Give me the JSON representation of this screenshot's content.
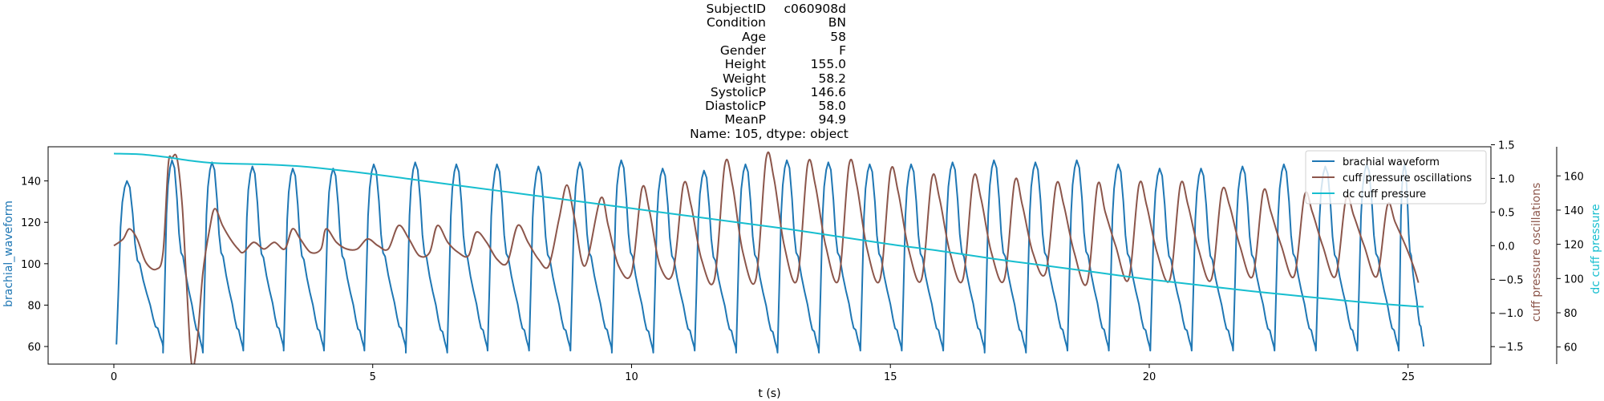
{
  "title_lines": [
    {
      "key": "SubjectID",
      "value": "c060908d"
    },
    {
      "key": "Condition",
      "value": "BN"
    },
    {
      "key": "Age",
      "value": "58"
    },
    {
      "key": "Gender",
      "value": "F"
    },
    {
      "key": "Height",
      "value": "155.0"
    },
    {
      "key": "Weight",
      "value": "58.2"
    },
    {
      "key": "SystolicP",
      "value": "146.6"
    },
    {
      "key": "DiastolicP",
      "value": "58.0"
    },
    {
      "key": "MeanP",
      "value": "94.9"
    }
  ],
  "title_footer": "Name: 105, dtype: object",
  "chart_data": {
    "type": "line",
    "xlabel": "t (s)",
    "xlim": [
      -1.27,
      26.6
    ],
    "xticks": [
      0,
      5,
      10,
      15,
      20,
      25
    ],
    "grid": false,
    "legend_placement": "top-right",
    "legend": [
      "brachial waveform",
      "cuff pressure oscillations",
      "dc cuff pressure"
    ],
    "axes": {
      "left": {
        "label": "brachial_waveform",
        "ylim": [
          51.5,
          156.5
        ],
        "ticks": [
          60,
          80,
          100,
          120,
          140
        ],
        "color": "#1f77b4"
      },
      "right1": {
        "label": "cuff pressure oscillations",
        "ylim": [
          -1.76,
          1.47
        ],
        "ticks": [
          -1.5,
          -1.0,
          -0.5,
          0.0,
          0.5,
          1.0,
          1.5
        ],
        "tick_labels": [
          "−1.5",
          "−1.0",
          "−0.5",
          "0.0",
          "0.5",
          "1.0",
          "1.5"
        ],
        "color": "#8c564b"
      },
      "right2": {
        "label": "dc cuff pressure",
        "ylim": [
          50,
          177
        ],
        "ticks": [
          60,
          80,
          100,
          120,
          140,
          160
        ],
        "color": "#17becf"
      }
    },
    "series": [
      {
        "name": "brachial waveform",
        "axis": "left",
        "color": "#1f77b4",
        "beat_onsets": [
          0.05,
          0.95,
          1.72,
          2.5,
          3.28,
          4.06,
          4.84,
          5.64,
          6.44,
          7.22,
          8.02,
          8.82,
          9.62,
          10.42,
          11.22,
          12.02,
          12.82,
          13.62,
          14.42,
          15.22,
          16.02,
          16.82,
          17.62,
          18.42,
          19.22,
          20.02,
          20.82,
          21.62,
          22.42,
          23.22,
          24.02,
          24.82
        ],
        "beat_peaks": [
          140,
          150,
          149,
          147,
          146,
          146,
          148,
          149,
          148,
          148,
          147,
          149,
          150,
          146,
          145,
          148,
          150,
          149,
          148,
          148,
          149,
          150,
          149,
          150,
          148,
          146,
          146,
          147,
          148,
          147,
          148,
          148
        ],
        "beat_troughs": [
          60,
          57,
          58,
          59,
          58,
          58,
          59,
          57,
          58,
          58,
          58,
          58,
          57,
          58,
          58,
          57,
          57,
          58,
          58,
          58,
          58,
          57,
          58,
          58,
          58,
          58,
          58,
          58,
          58,
          58,
          58,
          60
        ],
        "end_t": 25.3
      },
      {
        "name": "cuff pressure oscillations",
        "axis": "right1",
        "color": "#8c564b",
        "points": [
          [
            0.0,
            0.0
          ],
          [
            0.18,
            0.1
          ],
          [
            0.3,
            0.25
          ],
          [
            0.45,
            0.1
          ],
          [
            0.62,
            -0.25
          ],
          [
            0.82,
            -0.35
          ],
          [
            0.95,
            -0.1
          ],
          [
            1.05,
            1.2
          ],
          [
            1.12,
            1.3
          ],
          [
            1.22,
            1.3
          ],
          [
            1.32,
            0.6
          ],
          [
            1.4,
            -0.5
          ],
          [
            1.5,
            -1.75
          ],
          [
            1.6,
            -1.5
          ],
          [
            1.72,
            -0.4
          ],
          [
            1.85,
            0.25
          ],
          [
            1.95,
            0.55
          ],
          [
            2.1,
            0.3
          ],
          [
            2.25,
            0.1
          ],
          [
            2.4,
            -0.05
          ],
          [
            2.5,
            -0.1
          ],
          [
            2.7,
            0.05
          ],
          [
            2.9,
            -0.05
          ],
          [
            3.1,
            0.05
          ],
          [
            3.3,
            -0.05
          ],
          [
            3.45,
            0.25
          ],
          [
            3.6,
            0.1
          ],
          [
            3.8,
            -0.1
          ],
          [
            4.0,
            -0.05
          ],
          [
            4.1,
            0.25
          ],
          [
            4.3,
            0.05
          ],
          [
            4.5,
            -0.05
          ],
          [
            4.7,
            -0.05
          ],
          [
            4.9,
            0.1
          ],
          [
            5.1,
            0.0
          ],
          [
            5.3,
            -0.05
          ],
          [
            5.5,
            0.3
          ],
          [
            5.7,
            0.1
          ],
          [
            5.9,
            -0.15
          ],
          [
            6.1,
            -0.1
          ],
          [
            6.25,
            0.3
          ],
          [
            6.45,
            0.05
          ],
          [
            6.65,
            -0.1
          ],
          [
            6.85,
            -0.15
          ],
          [
            7.0,
            0.2
          ],
          [
            7.2,
            0.05
          ],
          [
            7.4,
            -0.2
          ],
          [
            7.6,
            -0.25
          ],
          [
            7.8,
            0.3
          ],
          [
            8.0,
            0.05
          ],
          [
            8.2,
            -0.2
          ],
          [
            8.4,
            -0.3
          ],
          [
            8.6,
            0.4
          ],
          [
            8.75,
            0.9
          ],
          [
            8.9,
            0.4
          ],
          [
            9.1,
            -0.3
          ],
          [
            9.4,
            0.7
          ],
          [
            9.55,
            0.3
          ],
          [
            9.75,
            -0.3
          ],
          [
            10.0,
            -0.4
          ],
          [
            10.2,
            0.85
          ],
          [
            10.35,
            0.5
          ],
          [
            10.55,
            -0.3
          ],
          [
            10.8,
            -0.4
          ],
          [
            11.0,
            0.9
          ],
          [
            11.15,
            0.6
          ],
          [
            11.35,
            -0.2
          ],
          [
            11.6,
            -0.5
          ],
          [
            11.8,
            1.2
          ],
          [
            11.95,
            0.9
          ],
          [
            12.15,
            -0.1
          ],
          [
            12.4,
            -0.5
          ],
          [
            12.6,
            1.3
          ],
          [
            12.75,
            1.0
          ],
          [
            12.95,
            0.0
          ],
          [
            13.2,
            -0.5
          ],
          [
            13.4,
            1.2
          ],
          [
            13.55,
            0.9
          ],
          [
            13.75,
            0.0
          ],
          [
            14.0,
            -0.5
          ],
          [
            14.2,
            1.2
          ],
          [
            14.35,
            0.9
          ],
          [
            14.55,
            -0.05
          ],
          [
            14.8,
            -0.5
          ],
          [
            15.0,
            1.1
          ],
          [
            15.15,
            0.8
          ],
          [
            15.35,
            -0.05
          ],
          [
            15.6,
            -0.5
          ],
          [
            15.8,
            1.0
          ],
          [
            15.95,
            0.7
          ],
          [
            16.15,
            -0.1
          ],
          [
            16.4,
            -0.5
          ],
          [
            16.6,
            1.0
          ],
          [
            16.75,
            0.7
          ],
          [
            16.95,
            -0.1
          ],
          [
            17.2,
            -0.5
          ],
          [
            17.4,
            0.95
          ],
          [
            17.55,
            0.6
          ],
          [
            17.75,
            -0.1
          ],
          [
            18.0,
            -0.4
          ],
          [
            18.2,
            0.9
          ],
          [
            18.35,
            0.6
          ],
          [
            18.55,
            -0.1
          ],
          [
            18.8,
            -0.55
          ],
          [
            19.0,
            0.9
          ],
          [
            19.15,
            0.5
          ],
          [
            19.35,
            0.0
          ],
          [
            19.6,
            -0.5
          ],
          [
            19.8,
            0.9
          ],
          [
            19.95,
            0.6
          ],
          [
            20.15,
            -0.1
          ],
          [
            20.4,
            -0.5
          ],
          [
            20.6,
            0.9
          ],
          [
            20.75,
            0.6
          ],
          [
            20.95,
            -0.05
          ],
          [
            21.2,
            -0.5
          ],
          [
            21.4,
            0.8
          ],
          [
            21.55,
            0.6
          ],
          [
            21.75,
            0.0
          ],
          [
            22.0,
            -0.45
          ],
          [
            22.2,
            0.8
          ],
          [
            22.35,
            0.5
          ],
          [
            22.55,
            0.0
          ],
          [
            22.8,
            -0.45
          ],
          [
            23.0,
            0.75
          ],
          [
            23.15,
            0.5
          ],
          [
            23.35,
            0.0
          ],
          [
            23.6,
            -0.45
          ],
          [
            23.8,
            0.7
          ],
          [
            23.95,
            0.45
          ],
          [
            24.15,
            0.0
          ],
          [
            24.4,
            -0.45
          ],
          [
            24.6,
            0.6
          ],
          [
            24.75,
            0.35
          ],
          [
            24.95,
            0.0
          ],
          [
            25.1,
            -0.3
          ],
          [
            25.2,
            -0.55
          ]
        ]
      },
      {
        "name": "dc cuff pressure",
        "axis": "right2",
        "color": "#17becf",
        "points": [
          [
            0.0,
            173
          ],
          [
            0.5,
            172.6
          ],
          [
            1.0,
            171
          ],
          [
            1.5,
            168.8
          ],
          [
            2.0,
            167.4
          ],
          [
            3.0,
            166.6
          ],
          [
            3.5,
            165.8
          ],
          [
            4.0,
            164.5
          ],
          [
            5.0,
            161
          ],
          [
            6.0,
            157
          ],
          [
            7.0,
            153
          ],
          [
            8.0,
            149
          ],
          [
            9.0,
            145
          ],
          [
            10.0,
            141
          ],
          [
            11.0,
            137
          ],
          [
            12.0,
            133
          ],
          [
            13.0,
            129
          ],
          [
            14.0,
            124.5
          ],
          [
            15.0,
            120
          ],
          [
            16.0,
            116
          ],
          [
            17.0,
            111.5
          ],
          [
            18.0,
            107.5
          ],
          [
            19.0,
            103.5
          ],
          [
            20.0,
            99.5
          ],
          [
            21.0,
            96
          ],
          [
            22.0,
            92.5
          ],
          [
            23.0,
            89.5
          ],
          [
            24.0,
            86.5
          ],
          [
            25.0,
            84
          ],
          [
            25.3,
            83.5
          ]
        ]
      }
    ]
  }
}
